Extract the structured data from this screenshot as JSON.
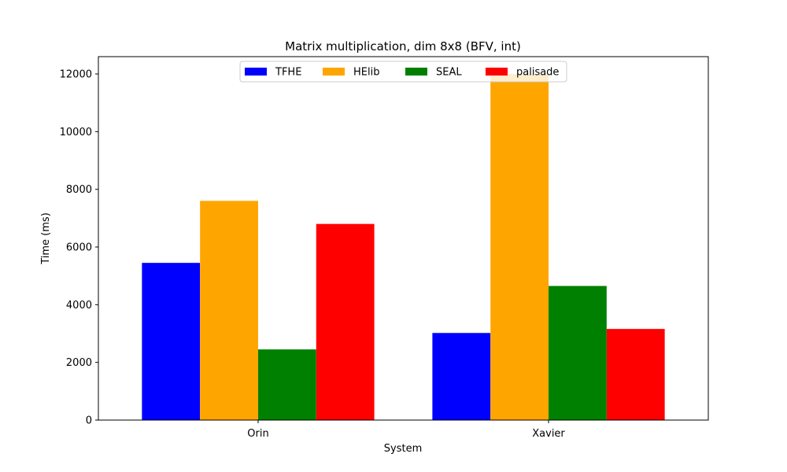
{
  "chart_data": {
    "type": "bar",
    "title": "Matrix multiplication, dim 8x8 (BFV, int)",
    "xlabel": "System",
    "ylabel": "Time (ms)",
    "categories": [
      "Orin",
      "Xavier"
    ],
    "series": [
      {
        "name": "TFHE",
        "color": "#0000ff",
        "values": [
          5450,
          3020
        ]
      },
      {
        "name": "HElib",
        "color": "#ffa500",
        "values": [
          7600,
          12000
        ]
      },
      {
        "name": "SEAL",
        "color": "#008000",
        "values": [
          2450,
          4650
        ]
      },
      {
        "name": "palisade",
        "color": "#ff0000",
        "values": [
          6800,
          3160
        ]
      }
    ],
    "ylim": [
      0,
      12600
    ],
    "yticks": [
      0,
      2000,
      4000,
      6000,
      8000,
      10000,
      12000
    ],
    "grid": false,
    "legend": "upper-center"
  }
}
